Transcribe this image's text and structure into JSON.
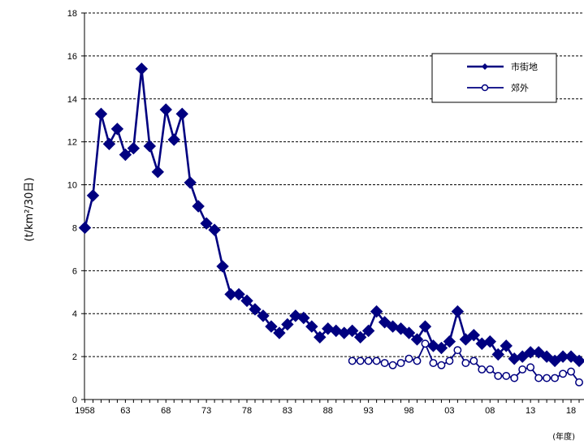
{
  "chart_data": {
    "type": "line",
    "ylabel": "(t/km²/30日)",
    "xlabel": "(年度)",
    "ylim": [
      0,
      18
    ],
    "yticks": [
      "0",
      "2",
      "4",
      "6",
      "8",
      "10",
      "12",
      "14",
      "16",
      "18"
    ],
    "xlim": [
      1958,
      2019
    ],
    "xticks": [
      {
        "value": 1958,
        "label": "1958"
      },
      {
        "value": 1963,
        "label": "63"
      },
      {
        "value": 1968,
        "label": "68"
      },
      {
        "value": 1973,
        "label": "73"
      },
      {
        "value": 1978,
        "label": "78"
      },
      {
        "value": 1983,
        "label": "83"
      },
      {
        "value": 1988,
        "label": "88"
      },
      {
        "value": 1993,
        "label": "93"
      },
      {
        "value": 1998,
        "label": "98"
      },
      {
        "value": 2003,
        "label": "03"
      },
      {
        "value": 2008,
        "label": "08"
      },
      {
        "value": 2013,
        "label": "13"
      },
      {
        "value": 2018,
        "label": "18"
      }
    ],
    "grid": true,
    "legend_position": "top-right",
    "series": [
      {
        "name": "市街地",
        "marker": "diamond-filled",
        "color": "#000080",
        "points": [
          [
            1958,
            8.0
          ],
          [
            1959,
            9.5
          ],
          [
            1960,
            13.3
          ],
          [
            1961,
            11.9
          ],
          [
            1962,
            12.6
          ],
          [
            1963,
            11.4
          ],
          [
            1964,
            11.7
          ],
          [
            1965,
            15.4
          ],
          [
            1966,
            11.8
          ],
          [
            1967,
            10.6
          ],
          [
            1968,
            13.5
          ],
          [
            1969,
            12.1
          ],
          [
            1970,
            13.3
          ],
          [
            1971,
            10.1
          ],
          [
            1972,
            9.0
          ],
          [
            1973,
            8.2
          ],
          [
            1974,
            7.9
          ],
          [
            1975,
            6.2
          ],
          [
            1976,
            4.9
          ],
          [
            1977,
            4.9
          ],
          [
            1978,
            4.6
          ],
          [
            1979,
            4.2
          ],
          [
            1980,
            3.9
          ],
          [
            1981,
            3.4
          ],
          [
            1982,
            3.1
          ],
          [
            1983,
            3.5
          ],
          [
            1984,
            3.9
          ],
          [
            1985,
            3.8
          ],
          [
            1986,
            3.4
          ],
          [
            1987,
            2.9
          ],
          [
            1988,
            3.3
          ],
          [
            1989,
            3.2
          ],
          [
            1990,
            3.1
          ],
          [
            1991,
            3.2
          ],
          [
            1992,
            2.9
          ],
          [
            1993,
            3.2
          ],
          [
            1994,
            4.1
          ],
          [
            1995,
            3.6
          ],
          [
            1996,
            3.4
          ],
          [
            1997,
            3.3
          ],
          [
            1998,
            3.1
          ],
          [
            1999,
            2.8
          ],
          [
            2000,
            3.4
          ],
          [
            2001,
            2.5
          ],
          [
            2002,
            2.4
          ],
          [
            2003,
            2.7
          ],
          [
            2004,
            4.1
          ],
          [
            2005,
            2.8
          ],
          [
            2006,
            3.0
          ],
          [
            2007,
            2.6
          ],
          [
            2008,
            2.7
          ],
          [
            2009,
            2.1
          ],
          [
            2010,
            2.5
          ],
          [
            2011,
            1.9
          ],
          [
            2012,
            2.0
          ],
          [
            2013,
            2.2
          ],
          [
            2014,
            2.2
          ],
          [
            2015,
            2.0
          ],
          [
            2016,
            1.8
          ],
          [
            2017,
            2.0
          ],
          [
            2018,
            2.0
          ],
          [
            2019,
            1.8
          ]
        ]
      },
      {
        "name": "郊外",
        "marker": "circle-open",
        "color": "#000080",
        "points": [
          [
            1991,
            1.8
          ],
          [
            1992,
            1.8
          ],
          [
            1993,
            1.8
          ],
          [
            1994,
            1.8
          ],
          [
            1995,
            1.7
          ],
          [
            1996,
            1.6
          ],
          [
            1997,
            1.7
          ],
          [
            1998,
            1.9
          ],
          [
            1999,
            1.8
          ],
          [
            2000,
            2.6
          ],
          [
            2001,
            1.7
          ],
          [
            2002,
            1.6
          ],
          [
            2003,
            1.8
          ],
          [
            2004,
            2.3
          ],
          [
            2005,
            1.7
          ],
          [
            2006,
            1.8
          ],
          [
            2007,
            1.4
          ],
          [
            2008,
            1.4
          ],
          [
            2009,
            1.1
          ],
          [
            2010,
            1.1
          ],
          [
            2011,
            1.0
          ],
          [
            2012,
            1.4
          ],
          [
            2013,
            1.5
          ],
          [
            2014,
            1.0
          ],
          [
            2015,
            1.0
          ],
          [
            2016,
            1.0
          ],
          [
            2017,
            1.2
          ],
          [
            2018,
            1.3
          ],
          [
            2019,
            0.8
          ]
        ]
      }
    ]
  }
}
